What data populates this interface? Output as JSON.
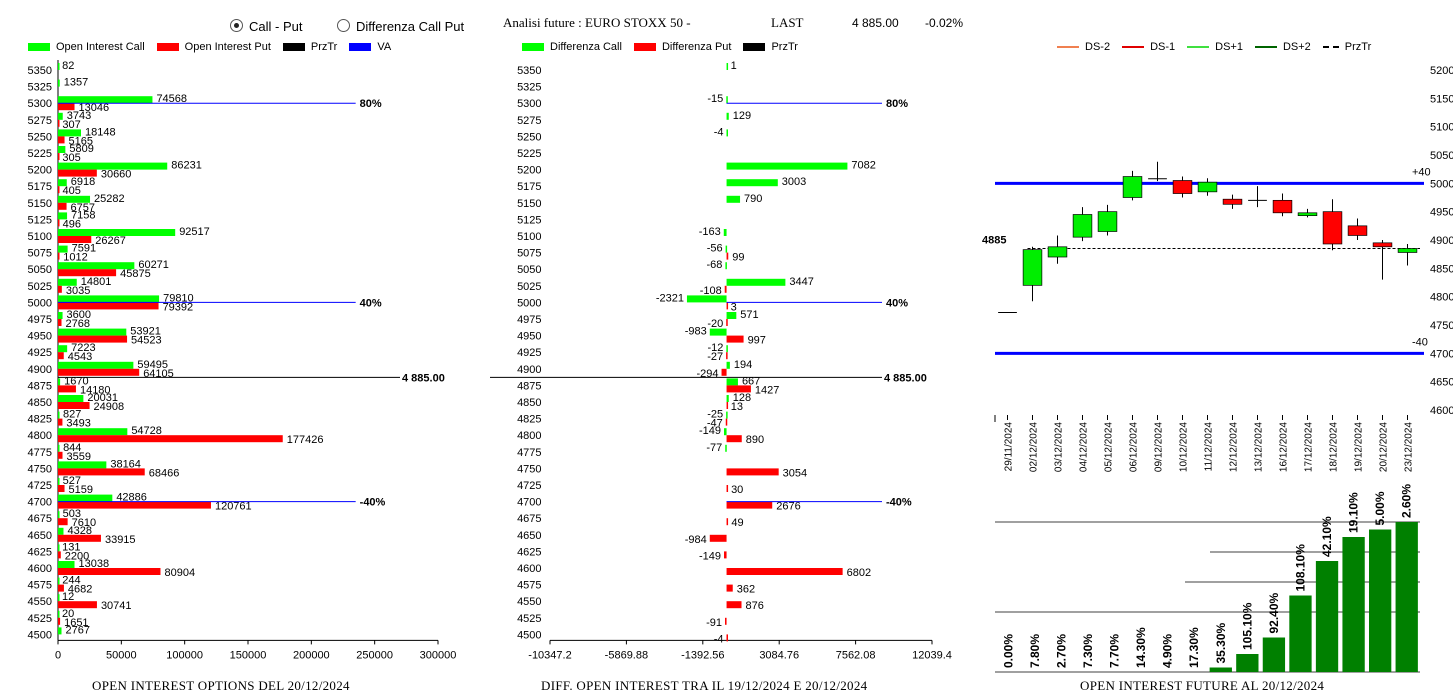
{
  "header": {
    "radio_call_put": "Call - Put",
    "radio_diff": "Differenza Call Put",
    "title": "Analisi future : EURO STOXX 50 -",
    "last_label": "LAST",
    "last_value": "4 885.00",
    "last_change": "-0.02%"
  },
  "colors": {
    "green": "#00ff00",
    "red": "#ff0000",
    "black": "#000000",
    "blue": "#0000ff",
    "dark_green": "#008000"
  },
  "strikes": [
    5350,
    5325,
    5300,
    5275,
    5250,
    5225,
    5200,
    5175,
    5150,
    5125,
    5100,
    5075,
    5050,
    5025,
    5000,
    4975,
    4950,
    4925,
    4900,
    4875,
    4850,
    4825,
    4800,
    4775,
    4750,
    4725,
    4700,
    4675,
    4650,
    4625,
    4600,
    4575,
    4550,
    4525,
    4500
  ],
  "chart_data": [
    {
      "type": "bar",
      "orientation": "horizontal",
      "caption": "OPEN INTEREST OPTIONS DEL 20/12/2024",
      "legend": [
        "Open Interest Call",
        "Open Interest Put",
        "PrzTr",
        "VA"
      ],
      "x_ticks": [
        "0",
        "50000",
        "100000",
        "150000",
        "200000",
        "250000",
        "300000"
      ],
      "xlim": [
        0,
        300000
      ],
      "series": [
        {
          "name": "Open Interest Call",
          "values": [
            82,
            1357,
            74568,
            3743,
            18148,
            5809,
            86231,
            6918,
            25282,
            7158,
            92517,
            7591,
            60271,
            14801,
            79810,
            3600,
            53921,
            7223,
            59495,
            1670,
            20031,
            827,
            54728,
            844,
            38164,
            527,
            42886,
            503,
            4328,
            131,
            13038,
            244,
            12,
            20,
            2767
          ]
        },
        {
          "name": "Open Interest Put",
          "values": [
            0,
            0,
            13046,
            307,
            5165,
            305,
            30660,
            405,
            6757,
            496,
            26267,
            1012,
            45875,
            3035,
            79392,
            2768,
            54523,
            4543,
            64105,
            14180,
            24908,
            3493,
            177426,
            3559,
            68466,
            5159,
            120761,
            7610,
            33915,
            2200,
            80904,
            4682,
            30741,
            1651,
            0
          ]
        }
      ],
      "price_line": {
        "strike": 4885,
        "label": "4 885.00"
      },
      "va_lines": [
        {
          "strike": 5300,
          "label": "80%"
        },
        {
          "strike": 5000,
          "label": "40%"
        },
        {
          "strike": 4700,
          "label": "-40%"
        }
      ]
    },
    {
      "type": "bar",
      "orientation": "horizontal",
      "caption": "DIFF. OPEN INTEREST TRA IL 19/12/2024 E 20/12/2024",
      "legend": [
        "Differenza Call",
        "Differenza Put",
        "PrzTr"
      ],
      "x_ticks": [
        "-10347.2",
        "-5869.88",
        "-1392.56",
        "3084.76",
        "7562.08",
        "12039.4"
      ],
      "xlim": [
        -10347.2,
        12039.4
      ],
      "series": [
        {
          "name": "Differenza Call",
          "values": [
            1,
            null,
            -15,
            129,
            -4,
            null,
            7082,
            3003,
            790,
            null,
            -163,
            -56,
            -68,
            3447,
            -2321,
            571,
            -983,
            -12,
            194,
            667,
            128,
            -25,
            -149,
            -77,
            null,
            null,
            null,
            null,
            null,
            null,
            null,
            null,
            null,
            null,
            null
          ]
        },
        {
          "name": "Differenza Put",
          "values": [
            null,
            null,
            null,
            null,
            null,
            null,
            null,
            null,
            null,
            null,
            null,
            99,
            null,
            -108,
            3,
            -20,
            997,
            -27,
            -294,
            1427,
            13,
            -47,
            890,
            null,
            3054,
            30,
            2676,
            49,
            -984,
            -149,
            6802,
            362,
            876,
            -91,
            -4
          ]
        }
      ],
      "price_line": {
        "strike": 4885,
        "label": "4 885.00"
      },
      "va_lines": [
        {
          "strike": 5300,
          "label": "80%"
        },
        {
          "strike": 5000,
          "label": "40%"
        },
        {
          "strike": 4700,
          "label": "-40%"
        }
      ]
    },
    {
      "type": "candlestick",
      "legend": [
        "DS-2",
        "DS-1",
        "DS+1",
        "DS+2",
        "PrzTr"
      ],
      "legend_colors": [
        "#f08050",
        "#e00000",
        "#40e040",
        "#006400",
        "#000000"
      ],
      "y_ticks": [
        "5200",
        "5150",
        "5100",
        "5050",
        "5000",
        "4950",
        "4900",
        "4850",
        "4800",
        "4750",
        "4700",
        "4650",
        "4600"
      ],
      "ylim": [
        4600,
        5200
      ],
      "dates": [
        "29/11/2024",
        "02/12/2024",
        "03/12/2024",
        "04/12/2024",
        "05/12/2024",
        "06/12/2024",
        "09/12/2024",
        "10/12/2024",
        "11/12/2024",
        "12/12/2024",
        "13/12/2024",
        "16/12/2024",
        "17/12/2024",
        "18/12/2024",
        "19/12/2024",
        "20/12/2024",
        "23/12/2024"
      ],
      "candles": [
        {
          "o": 4772,
          "c": 4772,
          "h": 4772,
          "l": 4772
        },
        {
          "o": 4820,
          "c": 4883,
          "h": 4888,
          "l": 4792
        },
        {
          "o": 4870,
          "c": 4888,
          "h": 4908,
          "l": 4858
        },
        {
          "o": 4905,
          "c": 4945,
          "h": 4958,
          "l": 4898
        },
        {
          "o": 4915,
          "c": 4950,
          "h": 4962,
          "l": 4908
        },
        {
          "o": 4975,
          "c": 5012,
          "h": 5022,
          "l": 4970
        },
        {
          "o": 5008,
          "c": 5008,
          "h": 5038,
          "l": 5004
        },
        {
          "o": 5005,
          "c": 4982,
          "h": 5012,
          "l": 4975
        },
        {
          "o": 4985,
          "c": 5002,
          "h": 5009,
          "l": 4978
        },
        {
          "o": 4972,
          "c": 4963,
          "h": 4980,
          "l": 4955
        },
        {
          "o": 4970,
          "c": 4970,
          "h": 4995,
          "l": 4958
        },
        {
          "o": 4970,
          "c": 4948,
          "h": 4982,
          "l": 4942
        },
        {
          "o": 4943,
          "c": 4948,
          "h": 4955,
          "l": 4940
        },
        {
          "o": 4950,
          "c": 4893,
          "h": 4972,
          "l": 4882
        },
        {
          "o": 4925,
          "c": 4908,
          "h": 4938,
          "l": 4900
        },
        {
          "o": 4895,
          "c": 4888,
          "h": 4900,
          "l": 4830
        },
        {
          "o": 4878,
          "c": 4885,
          "h": 4893,
          "l": 4855
        }
      ],
      "price_label": "4885",
      "price": 4885,
      "band_lines": [
        {
          "level": 5000,
          "label": "+40"
        },
        {
          "level": 4700,
          "label": "-40"
        }
      ]
    },
    {
      "type": "bar",
      "caption": "OPEN INTEREST FUTURE AL 20/12/2024",
      "values": [
        0.0,
        7.8,
        2.7,
        7.3,
        7.7,
        14.3,
        4.9,
        17.3,
        35.3,
        105.1,
        92.4,
        108.1,
        42.1,
        19.1,
        5.0,
        2.6
      ],
      "labels": [
        "0.00%",
        "7.80%",
        "2.70%",
        "7.30%",
        "7.70%",
        "14.30%",
        "4.90%",
        "17.30%",
        "35.30%",
        "105.10%",
        "92.40%",
        "108.10%",
        "42.10%",
        "19.10%",
        "5.00%",
        "2.60%"
      ],
      "relative_heights": [
        0.0,
        0.0,
        0.0,
        0.0,
        0.0,
        0.0,
        0.0,
        0.0,
        0.03,
        0.12,
        0.23,
        0.51,
        0.74,
        0.9,
        0.95,
        1.0
      ]
    }
  ]
}
